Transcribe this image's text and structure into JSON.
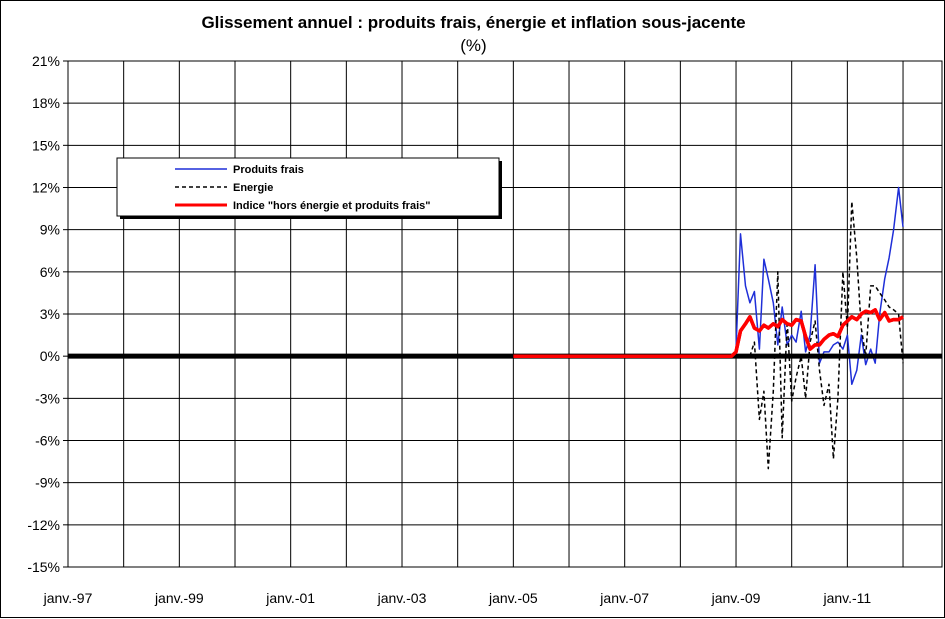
{
  "chart_data": {
    "type": "line",
    "title": "Glissement annuel : produits frais, énergie et inflation sous-jacente",
    "unit_label": "(%)",
    "ylim": [
      -15,
      21
    ],
    "y_ticks": [
      "21%",
      "18%",
      "15%",
      "12%",
      "9%",
      "6%",
      "3%",
      "0%",
      "-3%",
      "-6%",
      "-9%",
      "-12%",
      "-15%"
    ],
    "y_tick_values": [
      21,
      18,
      15,
      12,
      9,
      6,
      3,
      0,
      -3,
      -6,
      -9,
      -12,
      -15
    ],
    "x_range": [
      1997,
      2012.7
    ],
    "x_ticks": [
      "janv.-97",
      "janv.-99",
      "janv.-01",
      "janv.-03",
      "janv.-05",
      "janv.-07",
      "janv.-09",
      "janv.-11"
    ],
    "x_tick_values": [
      1997,
      1999,
      2001,
      2003,
      2005,
      2007,
      2009,
      2011
    ],
    "grid": true,
    "legend_position": "top-left",
    "series": [
      {
        "name": "Produits frais",
        "color": "#1f2fd8",
        "style": "solid",
        "x": [
          2009.0,
          2009.08,
          2009.17,
          2009.25,
          2009.33,
          2009.42,
          2009.5,
          2009.58,
          2009.67,
          2009.75,
          2009.83,
          2009.92,
          2010.0,
          2010.08,
          2010.17,
          2010.25,
          2010.33,
          2010.42,
          2010.5,
          2010.58,
          2010.67,
          2010.75,
          2010.83,
          2010.92,
          2011.0,
          2011.08,
          2011.17,
          2011.25,
          2011.33,
          2011.42,
          2011.5,
          2011.58,
          2011.67,
          2011.75,
          2011.83,
          2011.92,
          2012.0
        ],
        "values": [
          0.5,
          8.7,
          5.0,
          3.8,
          4.6,
          0.5,
          6.9,
          5.5,
          3.8,
          0.8,
          3.5,
          0.8,
          1.5,
          1.0,
          3.2,
          0.3,
          1.5,
          6.5,
          -0.5,
          0.3,
          0.3,
          0.8,
          1.0,
          0.5,
          1.5,
          -2.0,
          -1.0,
          1.5,
          -0.6,
          0.5,
          -0.5,
          3.0,
          5.5,
          7.0,
          9.0,
          12.0,
          9.2
        ]
      },
      {
        "name": "Energie",
        "color": "#000000",
        "style": "dashed",
        "x": [
          2009.0,
          2009.08,
          2009.17,
          2009.25,
          2009.33,
          2009.42,
          2009.5,
          2009.58,
          2009.67,
          2009.75,
          2009.83,
          2009.92,
          2010.0,
          2010.08,
          2010.17,
          2010.25,
          2010.33,
          2010.42,
          2010.5,
          2010.58,
          2010.67,
          2010.75,
          2010.83,
          2010.92,
          2011.0,
          2011.08,
          2011.17,
          2011.25,
          2011.33,
          2011.42,
          2011.5,
          2011.58,
          2011.67,
          2011.75,
          2011.83,
          2011.92,
          2012.0
        ],
        "values": [
          0.0,
          0.0,
          0.0,
          0.0,
          1.0,
          -4.5,
          -2.5,
          -8.0,
          -2.5,
          6.0,
          -5.8,
          2.5,
          -3.2,
          -1.5,
          0.0,
          -3.0,
          1.0,
          2.5,
          -1.0,
          -3.5,
          -2.0,
          -7.3,
          -3.0,
          6.0,
          2.0,
          11.0,
          7.0,
          2.0,
          0.0,
          5.0,
          5.0,
          4.5,
          4.0,
          3.5,
          3.3,
          3.0,
          -0.5
        ]
      },
      {
        "name": "Indice \"hors énergie et produits frais\"",
        "color": "#ff0000",
        "style": "solid-thick",
        "x": [
          2005.0,
          2005.5,
          2006.0,
          2006.5,
          2007.0,
          2007.5,
          2008.0,
          2008.5,
          2008.92,
          2009.0,
          2009.08,
          2009.17,
          2009.25,
          2009.33,
          2009.42,
          2009.5,
          2009.58,
          2009.67,
          2009.75,
          2009.83,
          2009.92,
          2010.0,
          2010.08,
          2010.17,
          2010.25,
          2010.33,
          2010.42,
          2010.5,
          2010.58,
          2010.67,
          2010.75,
          2010.83,
          2010.92,
          2011.0,
          2011.08,
          2011.17,
          2011.25,
          2011.33,
          2011.42,
          2011.5,
          2011.58,
          2011.67,
          2011.75,
          2011.83,
          2011.92,
          2012.0
        ],
        "values": [
          0.0,
          0.0,
          0.0,
          0.0,
          0.0,
          0.0,
          0.0,
          0.0,
          0.0,
          0.3,
          1.8,
          2.3,
          2.8,
          2.0,
          1.8,
          2.2,
          2.0,
          2.3,
          2.1,
          2.6,
          2.3,
          2.2,
          2.6,
          2.5,
          1.4,
          0.5,
          0.8,
          0.8,
          1.2,
          1.5,
          1.6,
          1.4,
          2.2,
          2.5,
          2.8,
          2.6,
          3.0,
          3.2,
          3.1,
          3.3,
          2.6,
          3.1,
          2.5,
          2.6,
          2.6,
          2.8
        ]
      }
    ]
  }
}
